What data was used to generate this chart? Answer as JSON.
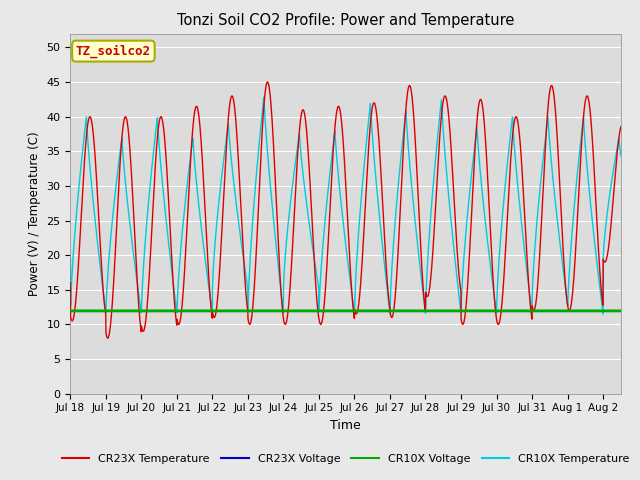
{
  "title": "Tonzi Soil CO2 Profile: Power and Temperature",
  "xlabel": "Time",
  "ylabel": "Power (V) / Temperature (C)",
  "ylim": [
    0,
    52
  ],
  "yticks": [
    0,
    5,
    10,
    15,
    20,
    25,
    30,
    35,
    40,
    45,
    50
  ],
  "fig_bg_color": "#e8e8e8",
  "plot_bg_color": "#dcdcdc",
  "annotation_text": "TZ_soilco2",
  "annotation_bg": "#ffffcc",
  "annotation_border": "#aaaa00",
  "annotation_color": "#cc0000",
  "cr23x_temp_color": "#dd0000",
  "cr23x_volt_color": "#0000cc",
  "cr10x_volt_color": "#00aa00",
  "cr10x_temp_color": "#00ccdd",
  "n_days": 15.5,
  "points_per_day": 200,
  "cr23x_volt_base": 11.9,
  "cr10x_volt_base": 11.95,
  "xlim_start": 0,
  "xlim_end": 15.5,
  "xtick_labels": [
    "Jul 18",
    "Jul 19",
    "Jul 20",
    "Jul 21",
    "Jul 22",
    "Jul 23",
    "Jul 24",
    "Jul 25",
    "Jul 26",
    "Jul 27",
    "Jul 28",
    "Jul 29",
    "Jul 30",
    "Jul 31",
    "Aug 1",
    "Aug 2"
  ],
  "xtick_positions": [
    0,
    1,
    2,
    3,
    4,
    5,
    6,
    7,
    8,
    9,
    10,
    11,
    12,
    13,
    14,
    15
  ]
}
